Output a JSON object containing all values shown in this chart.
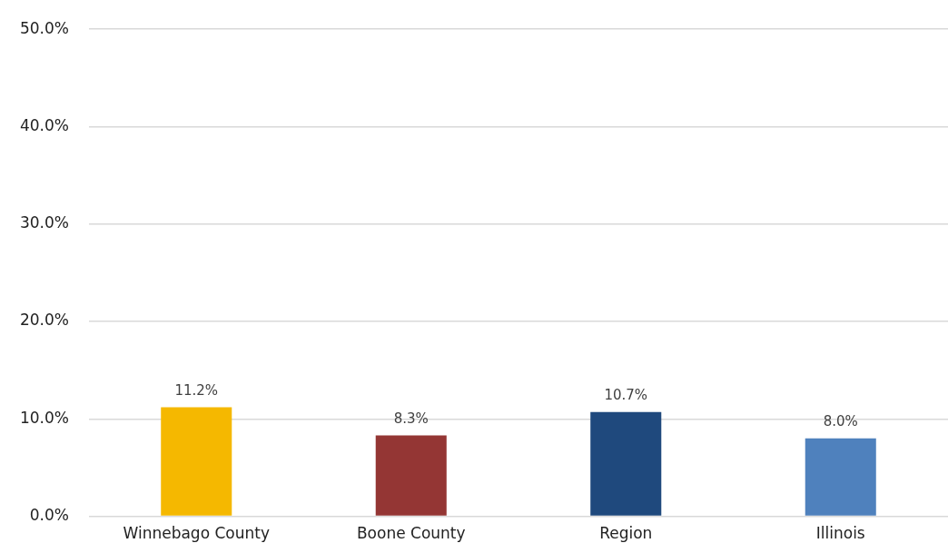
{
  "chart_data": {
    "type": "bar",
    "categories": [
      "Winnebago County",
      "Boone County",
      "Region",
      "Illinois"
    ],
    "values": [
      11.2,
      8.3,
      10.7,
      8.0
    ],
    "colors": [
      "#f5b800",
      "#943634",
      "#1f497d",
      "#4f81bd"
    ],
    "value_labels": [
      "11.2%",
      "8.3%",
      "10.7%",
      "8.0%"
    ],
    "ylim": [
      0,
      50
    ],
    "yticks": [
      {
        "value": 0,
        "label": "0.0%"
      },
      {
        "value": 10,
        "label": "10.0%"
      },
      {
        "value": 20,
        "label": "20.0%"
      },
      {
        "value": 30,
        "label": "30.0%"
      },
      {
        "value": 40,
        "label": "40.0%"
      },
      {
        "value": 50,
        "label": "50.0%"
      }
    ],
    "grid": "y"
  }
}
